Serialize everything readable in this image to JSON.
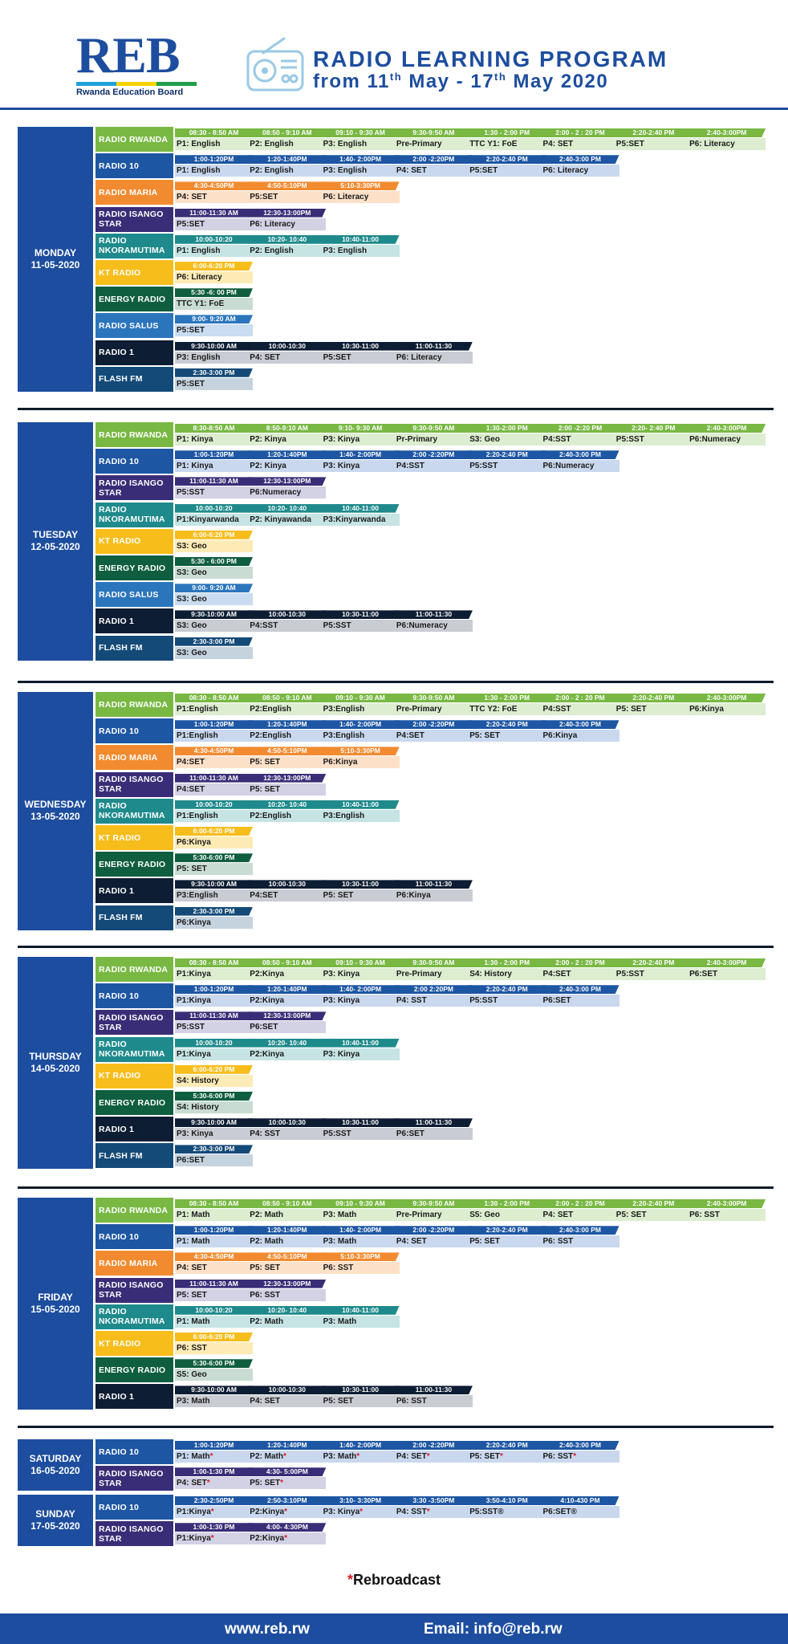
{
  "header": {
    "logo_text": "REB",
    "logo_subtitle": "Rwanda Education Board",
    "title": "RADIO LEARNING PROGRAM",
    "date_prefix": "from 11",
    "date_sup1": "th",
    "date_mid": " May - 17",
    "date_sup2": "th",
    "date_suffix": " May 2020",
    "radio_icon": "radio-icon"
  },
  "colors": {
    "RADIO RWANDA": "#78b843",
    "RADIO 10": "#1d56a3",
    "RADIO MARIA": "#f28b30",
    "RADIO ISANGO STAR": "#3a2d77",
    "RADIO NKORAMUTIMA": "#1f8a8c",
    "KT RADIO": "#f7bd1b",
    "ENERGY RADIO": "#0f5e3f",
    "RADIO SALUS": "#2b75bd",
    "RADIO 1": "#0d1d33",
    "FLASH FM": "#144a78"
  },
  "light_colors": {
    "RADIO RWANDA": "#dcedd0",
    "RADIO 10": "#c9d8ee",
    "RADIO MARIA": "#fde0c8",
    "RADIO ISANGO STAR": "#d3d1e4",
    "RADIO NKORAMUTIMA": "#c6e4e4",
    "KT RADIO": "#fdebb6",
    "ENERGY RADIO": "#c9dcd3",
    "RADIO SALUS": "#c9dcf0",
    "RADIO 1": "#c9ccd2",
    "FLASH FM": "#c5d3df"
  },
  "days": [
    {
      "day": "MONDAY",
      "date": "11-05-2020",
      "rows": [
        {
          "station": "RADIO RWANDA",
          "slots": [
            [
              "08:30 - 8:50 AM",
              "P1: English"
            ],
            [
              "08:50 - 9:10 AM",
              "P2: English"
            ],
            [
              "09:10 - 9:30 AM",
              "P3: English"
            ],
            [
              "9:30-9:50 AM",
              "Pre-Primary"
            ],
            [
              "1:30 - 2:00 PM",
              "TTC Y1: FoE"
            ],
            [
              "2:00 - 2 : 20 PM",
              "P4: SET"
            ],
            [
              "2:20-2:40 PM",
              "P5:SET"
            ],
            [
              "2:40-3:00PM",
              "P6: Literacy"
            ]
          ]
        },
        {
          "station": "RADIO 10",
          "slots": [
            [
              "1:00-1:20PM",
              "P1: English"
            ],
            [
              "1:20-1:40PM",
              "P2: English"
            ],
            [
              "1:40- 2:00PM",
              "P3: English"
            ],
            [
              "2:00 -2:20PM",
              "P4: SET"
            ],
            [
              "2:20-2:40 PM",
              "P5:SET"
            ],
            [
              "2:40-3:00 PM",
              "P6: Literacy"
            ]
          ]
        },
        {
          "station": "RADIO MARIA",
          "slots": [
            [
              "4:30-4:50PM",
              "P4: SET"
            ],
            [
              "4:50-5:10PM",
              "P5:SET"
            ],
            [
              "5:10-3:30PM",
              "P6: Literacy"
            ]
          ]
        },
        {
          "station": "RADIO ISANGO STAR",
          "slots": [
            [
              "11:00-11:30 AM",
              "P5:SET"
            ],
            [
              "12:30-13:00PM",
              "P6: Literacy"
            ]
          ]
        },
        {
          "station": "RADIO NKORAMUTIMA",
          "slots": [
            [
              "10:00-10:20",
              "P1: English"
            ],
            [
              "10:20- 10:40",
              "P2: English"
            ],
            [
              "10:40-11:00",
              "P3: English"
            ]
          ]
        },
        {
          "station": "KT RADIO",
          "slots": [
            [
              "6:00-6:20 PM",
              "P6: Literacy"
            ]
          ]
        },
        {
          "station": "ENERGY RADIO",
          "slots": [
            [
              "5:30 -6: 00 PM",
              "TTC Y1: FoE"
            ]
          ]
        },
        {
          "station": "RADIO SALUS",
          "slots": [
            [
              "9:00- 9:20 AM",
              "P5:SET"
            ]
          ]
        },
        {
          "station": "RADIO 1",
          "slots": [
            [
              "9:30-10:00 AM",
              "P3: English"
            ],
            [
              "10:00-10:30",
              "P4: SET"
            ],
            [
              "10:30-11:00",
              "P5:SET"
            ],
            [
              "11:00-11:30",
              "P6: Literacy"
            ]
          ]
        },
        {
          "station": "FLASH FM",
          "slots": [
            [
              "2:30-3:00 PM",
              "P5:SET"
            ]
          ]
        }
      ]
    },
    {
      "day": "TUESDAY",
      "date": "12-05-2020",
      "rows": [
        {
          "station": "RADIO RWANDA",
          "slots": [
            [
              "8:30-8:50 AM",
              "P1: Kinya"
            ],
            [
              "8:50-9:10 AM",
              "P2: Kinya"
            ],
            [
              "9:10- 9:30 AM",
              "P3: Kinya"
            ],
            [
              "9:30-9:50 AM",
              "Pr-Primary"
            ],
            [
              "1:30-2:00 PM",
              "S3: Geo"
            ],
            [
              "2:00 -2:20 PM",
              "P4:SST"
            ],
            [
              "2:20- 2:40 PM",
              "P5:SST"
            ],
            [
              "2:40-3:00PM",
              "P6:Numeracy"
            ]
          ]
        },
        {
          "station": "RADIO 10",
          "slots": [
            [
              "1:00-1:20PM",
              "P1: Kinya"
            ],
            [
              "1:20-1:40PM",
              "P2: Kinya"
            ],
            [
              "1:40- 2:00PM",
              "P3: Kinya"
            ],
            [
              "2:00 -2:20PM",
              "P4:SST"
            ],
            [
              "2:20-2:40 PM",
              "P5:SST"
            ],
            [
              "2:40-3:00 PM",
              "P6:Numeracy"
            ]
          ]
        },
        {
          "station": "RADIO ISANGO STAR",
          "slots": [
            [
              "11:00-11:30 AM",
              "P5:SST"
            ],
            [
              "12:30-13:00PM",
              "P6:Numeracy"
            ]
          ]
        },
        {
          "station": "RADIO NKORAMUTIMA",
          "slots": [
            [
              "10:00-10:20",
              "P1:Kinyarwanda"
            ],
            [
              "10:20- 10:40",
              "P2: Kinyawanda"
            ],
            [
              "10:40-11:00",
              "P3:Kinyarwanda"
            ]
          ]
        },
        {
          "station": "KT RADIO",
          "slots": [
            [
              "6:00-6:20 PM",
              "S3: Geo"
            ]
          ]
        },
        {
          "station": "ENERGY RADIO",
          "slots": [
            [
              "5:30 - 6:00 PM",
              "S3: Geo"
            ]
          ]
        },
        {
          "station": "RADIO SALUS",
          "slots": [
            [
              "9:00- 9:20 AM",
              "S3: Geo"
            ]
          ]
        },
        {
          "station": "RADIO 1",
          "slots": [
            [
              "9:30-10:00 AM",
              "S3: Geo"
            ],
            [
              "10:00-10:30",
              "P4:SST"
            ],
            [
              "10:30-11:00",
              "P5:SST"
            ],
            [
              "11:00-11:30",
              "P6:Numeracy"
            ]
          ]
        },
        {
          "station": "FLASH FM",
          "slots": [
            [
              "2:30-3:00 PM",
              "S3: Geo"
            ]
          ]
        }
      ]
    },
    {
      "day": "WEDNESDAY",
      "date": "13-05-2020",
      "rows": [
        {
          "station": "RADIO RWANDA",
          "slots": [
            [
              "08:30 - 8:50 AM",
              "P1:English"
            ],
            [
              "08:50 - 9:10 AM",
              "P2:English"
            ],
            [
              "09:10 - 9:30 AM",
              "P3:English"
            ],
            [
              "9:30-9:50 AM",
              "Pre-Primary"
            ],
            [
              "1:30 - 2:00 PM",
              "TTC Y2: FoE"
            ],
            [
              "2:00 - 2 : 20 PM",
              "P4:SST"
            ],
            [
              "2:20-2:40 PM",
              "P5: SET"
            ],
            [
              "2:40-3:00PM",
              "P6:Kinya"
            ]
          ]
        },
        {
          "station": "RADIO 10",
          "slots": [
            [
              "1:00-1:20PM",
              "P1:English"
            ],
            [
              "1:20-1:40PM",
              "P2:English"
            ],
            [
              "1:40- 2:00PM",
              "P3:English"
            ],
            [
              "2:00 -2:20PM",
              "P4:SET"
            ],
            [
              "2:20-2:40 PM",
              "P5: SET"
            ],
            [
              "2:40-3:00 PM",
              "P6:Kinya"
            ]
          ]
        },
        {
          "station": "RADIO MARIA",
          "slots": [
            [
              "4:30-4:50PM",
              "P4:SET"
            ],
            [
              "4:50-5:10PM",
              "P5: SET"
            ],
            [
              "5:10-3:30PM",
              "P6:Kinya"
            ]
          ]
        },
        {
          "station": "RADIO ISANGO STAR",
          "slots": [
            [
              "11:00-11:30 AM",
              "P4:SET"
            ],
            [
              "12:30-13:00PM",
              "P5: SET"
            ]
          ]
        },
        {
          "station": "RADIO NKORAMUTIMA",
          "slots": [
            [
              "10:00-10:20",
              "P1:English"
            ],
            [
              "10:20- 10:40",
              "P2:English"
            ],
            [
              "10:40-11:00",
              "P3:English"
            ]
          ]
        },
        {
          "station": "KT RADIO",
          "slots": [
            [
              "6:00-6:20 PM",
              "P6:Kinya"
            ]
          ]
        },
        {
          "station": "ENERGY RADIO",
          "slots": [
            [
              "5:30-6:00 PM",
              "P5: SET"
            ]
          ]
        },
        {
          "station": "RADIO 1",
          "slots": [
            [
              "9:30-10:00 AM",
              "P3:English"
            ],
            [
              "10:00-10:30",
              "P4:SET"
            ],
            [
              "10:30-11:00",
              "P5: SET"
            ],
            [
              "11:00-11:30",
              "P6:Kinya"
            ]
          ]
        },
        {
          "station": "FLASH FM",
          "slots": [
            [
              "2:30-3:00 PM",
              "P6:Kinya"
            ]
          ]
        }
      ]
    },
    {
      "day": "THURSDAY",
      "date": "14-05-2020",
      "rows": [
        {
          "station": "RADIO RWANDA",
          "slots": [
            [
              "08:30 - 8:50 AM",
              "P1:Kinya"
            ],
            [
              "08:50 - 9:10 AM",
              "P2:Kinya"
            ],
            [
              "09:10 - 9:30 AM",
              "P3: Kinya"
            ],
            [
              "9:30-9:50 AM",
              "Pre-Primary"
            ],
            [
              "1:30 - 2:00 PM",
              "S4: History"
            ],
            [
              "2:00 - 2 : 20 PM",
              "P4:SET"
            ],
            [
              "2:20-2:40 PM",
              "P5:SST"
            ],
            [
              "2:40-3:00PM",
              "P6:SET"
            ]
          ]
        },
        {
          "station": "RADIO 10",
          "slots": [
            [
              "1:00-1:20PM",
              "P1:Kinya"
            ],
            [
              "1:20-1:40PM",
              "P2:Kinya"
            ],
            [
              "1:40- 2:00PM",
              "P3: Kinya"
            ],
            [
              "2:00 2:20PM",
              "P4: SST"
            ],
            [
              "2:20-2:40 PM",
              "P5:SST"
            ],
            [
              "2:40-3:00 PM",
              "P6:SET"
            ]
          ]
        },
        {
          "station": "RADIO ISANGO STAR",
          "slots": [
            [
              "11:00-11:30 AM",
              "P5:SST"
            ],
            [
              "12:30-13:00PM",
              "P6:SET"
            ]
          ]
        },
        {
          "station": "RADIO NKORAMUTIMA",
          "slots": [
            [
              "10:00-10:20",
              "P1:Kinya"
            ],
            [
              "10:20- 10:40",
              "P2:Kinya"
            ],
            [
              "10:40-11:00",
              "P3: Kinya"
            ]
          ]
        },
        {
          "station": "KT RADIO",
          "slots": [
            [
              "6:00-6:20 PM",
              "S4: History"
            ]
          ]
        },
        {
          "station": "ENERGY RADIO",
          "slots": [
            [
              "5:30-6:00 PM",
              "S4: History"
            ]
          ]
        },
        {
          "station": "RADIO 1",
          "slots": [
            [
              "9:30-10:00 AM",
              "P3: Kinya"
            ],
            [
              "10:00-10:30",
              "P4: SST"
            ],
            [
              "10:30-11:00",
              "P5:SST"
            ],
            [
              "11:00-11:30",
              "P6:SET"
            ]
          ]
        },
        {
          "station": "FLASH FM",
          "slots": [
            [
              "2:30-3:00 PM",
              "P6:SET"
            ]
          ]
        }
      ]
    },
    {
      "day": "FRIDAY",
      "date": "15-05-2020",
      "rows": [
        {
          "station": "RADIO RWANDA",
          "slots": [
            [
              "08:30 - 8:50 AM",
              "P1: Math"
            ],
            [
              "08:50 - 9:10 AM",
              "P2: Math"
            ],
            [
              "09:10 - 9:30 AM",
              "P3: Math"
            ],
            [
              "9:30-9:50 AM",
              "Pre-Primary"
            ],
            [
              "1:30 - 2:00 PM",
              "S5: Geo"
            ],
            [
              "2:00 - 2 : 20 PM",
              "P4: SET"
            ],
            [
              "2:20-2:40 PM",
              "P5: SET"
            ],
            [
              "2:40-3:00PM",
              "P6: SST"
            ]
          ]
        },
        {
          "station": "RADIO 10",
          "slots": [
            [
              "1:00-1:20PM",
              "P1: Math"
            ],
            [
              "1:20-1:40PM",
              "P2: Math"
            ],
            [
              "1:40- 2:00PM",
              "P3: Math"
            ],
            [
              "2:00 -2:20PM",
              "P4: SET"
            ],
            [
              "2:20-2:40 PM",
              "P5: SET"
            ],
            [
              "2:40-3:00 PM",
              "P6: SST"
            ]
          ]
        },
        {
          "station": "RADIO MARIA",
          "slots": [
            [
              "4:30-4:50PM",
              "P4: SET"
            ],
            [
              "4:50-5:10PM",
              "P5: SET"
            ],
            [
              "5:10-3:30PM",
              "P6: SST"
            ]
          ]
        },
        {
          "station": "RADIO ISANGO STAR",
          "slots": [
            [
              "11:00-11:30 AM",
              "P5: SET"
            ],
            [
              "12:30-13:00PM",
              "P6: SST"
            ]
          ]
        },
        {
          "station": "RADIO NKORAMUTIMA",
          "slots": [
            [
              "10:00-10:20",
              "P1: Math"
            ],
            [
              "10:20- 10:40",
              "P2: Math"
            ],
            [
              "10:40-11:00",
              "P3: Math"
            ]
          ]
        },
        {
          "station": "KT RADIO",
          "slots": [
            [
              "6:00-6:20 PM",
              "P6: SST"
            ]
          ]
        },
        {
          "station": "ENERGY RADIO",
          "slots": [
            [
              "5:30-6:00 PM",
              "S5: Geo"
            ]
          ]
        },
        {
          "station": "RADIO 1",
          "slots": [
            [
              "9:30-10:00 AM",
              "P3: Math"
            ],
            [
              "10:00-10:30",
              "P4: SET"
            ],
            [
              "10:30-11:00",
              "P5: SET"
            ],
            [
              "11:00-11:30",
              "P6: SST"
            ]
          ]
        }
      ]
    },
    {
      "day": "SATURDAY",
      "date": "16-05-2020",
      "rows": [
        {
          "station": "RADIO 10",
          "slots": [
            [
              "1:00-1:20PM",
              "P1: Math",
              "*"
            ],
            [
              "1:20-1:40PM",
              "P2: Math",
              "*"
            ],
            [
              "1:40- 2:00PM",
              "P3: Math",
              "*"
            ],
            [
              "2:00 -2:20PM",
              "P4: SET",
              "*"
            ],
            [
              "2:20-2:40 PM",
              "P5: SET",
              "*"
            ],
            [
              "2:40-3:00 PM",
              "P6: SST",
              "*"
            ]
          ]
        },
        {
          "station": "RADIO ISANGO STAR",
          "slots": [
            [
              "1:00-1:30 PM",
              "P4: SET",
              "*"
            ],
            [
              "4:30- 5:00PM",
              "P5: SET",
              "*"
            ]
          ]
        }
      ]
    },
    {
      "day": "SUNDAY",
      "date": "17-05-2020",
      "rows": [
        {
          "station": "RADIO 10",
          "slots": [
            [
              "2:30-2:50PM",
              "P1:Kinya",
              "*"
            ],
            [
              "2:50-3:10PM",
              "P2:Kinya",
              "*"
            ],
            [
              "3:10- 3:30PM",
              "P3: Kinya",
              "*"
            ],
            [
              "3:30 -3:50PM",
              "P4: SST",
              "*"
            ],
            [
              "3:50-4:10 PM",
              "P5:SST®"
            ],
            [
              "4:10-430 PM",
              "P6:SET®"
            ]
          ]
        },
        {
          "station": "RADIO ISANGO STAR",
          "slots": [
            [
              "1:00-1:30 PM",
              "P1:Kinya",
              "*"
            ],
            [
              "4:00- 4:30PM",
              "P2:Kinya",
              "*"
            ]
          ]
        }
      ]
    }
  ],
  "note": {
    "asterisk": "*",
    "text": "Rebroadcast"
  },
  "footer": {
    "website": "www.reb.rw",
    "email": "Email: info@reb.rw"
  }
}
